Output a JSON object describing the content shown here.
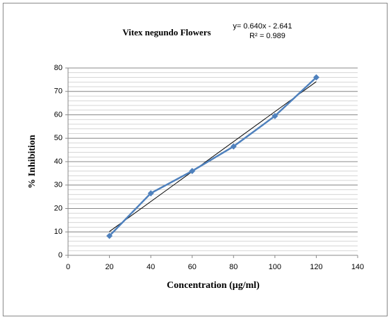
{
  "chart_data": {
    "type": "scatter-line",
    "title": "Vitex negundo Flowers",
    "x_label": "Concentration (µg/ml)",
    "y_label": "% Inhibition",
    "x": [
      20,
      40,
      60,
      80,
      100,
      120
    ],
    "series": [
      {
        "name": "Vitex negundo Flowers",
        "color": "#4f81bd",
        "values": [
          8.3,
          26.5,
          36,
          46.5,
          59.5,
          76
        ]
      }
    ],
    "trendline": {
      "slope": 0.64,
      "intercept": -2.641,
      "equation": "y= 0.640x - 2.641",
      "r2_label": "R² = 0.989",
      "color": "#000000"
    },
    "xlim": [
      0,
      140
    ],
    "xticks": [
      0,
      20,
      40,
      60,
      80,
      100,
      120,
      140
    ],
    "ylim": [
      0,
      80
    ],
    "yticks": [
      0,
      10,
      20,
      30,
      40,
      50,
      60,
      70,
      80
    ],
    "grid": true,
    "minor_grid_step": 2
  }
}
